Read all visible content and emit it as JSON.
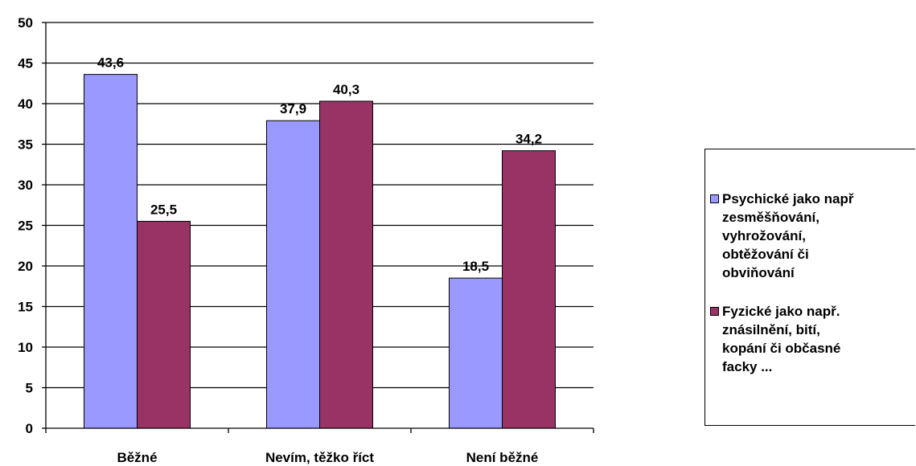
{
  "chart_data": {
    "type": "bar",
    "categories": [
      "Běžné",
      "Nevím, těžko říct",
      "Není běžné"
    ],
    "series": [
      {
        "name": "Psychické jako např. zesměšňování, vyhrožování, obtěžování či obviňování",
        "legend_label": "Psychické jako např\nzesměšňování,\nvyhrožování,\nobtěžování či\nobviňování",
        "color": "#9999ff",
        "values": [
          43.6,
          37.9,
          18.5
        ],
        "value_labels": [
          "43,6",
          "37,9",
          "18,5"
        ]
      },
      {
        "name": "Fyzické jako např. znásilnění, bití, kopání či občasné facky ...",
        "legend_label": "Fyzické jako např.\nznásilnění, bití,\nkopání či občasné\nfacky ...",
        "color": "#993366",
        "values": [
          25.5,
          40.3,
          34.2
        ],
        "value_labels": [
          "25,5",
          "40,3",
          "34,2"
        ]
      }
    ],
    "ylim": [
      0,
      50
    ],
    "yticks": [
      0,
      5,
      10,
      15,
      20,
      25,
      30,
      35,
      40,
      45,
      50
    ],
    "grid": true,
    "legend_position": "right",
    "xlabel": "",
    "ylabel": "",
    "title": ""
  }
}
